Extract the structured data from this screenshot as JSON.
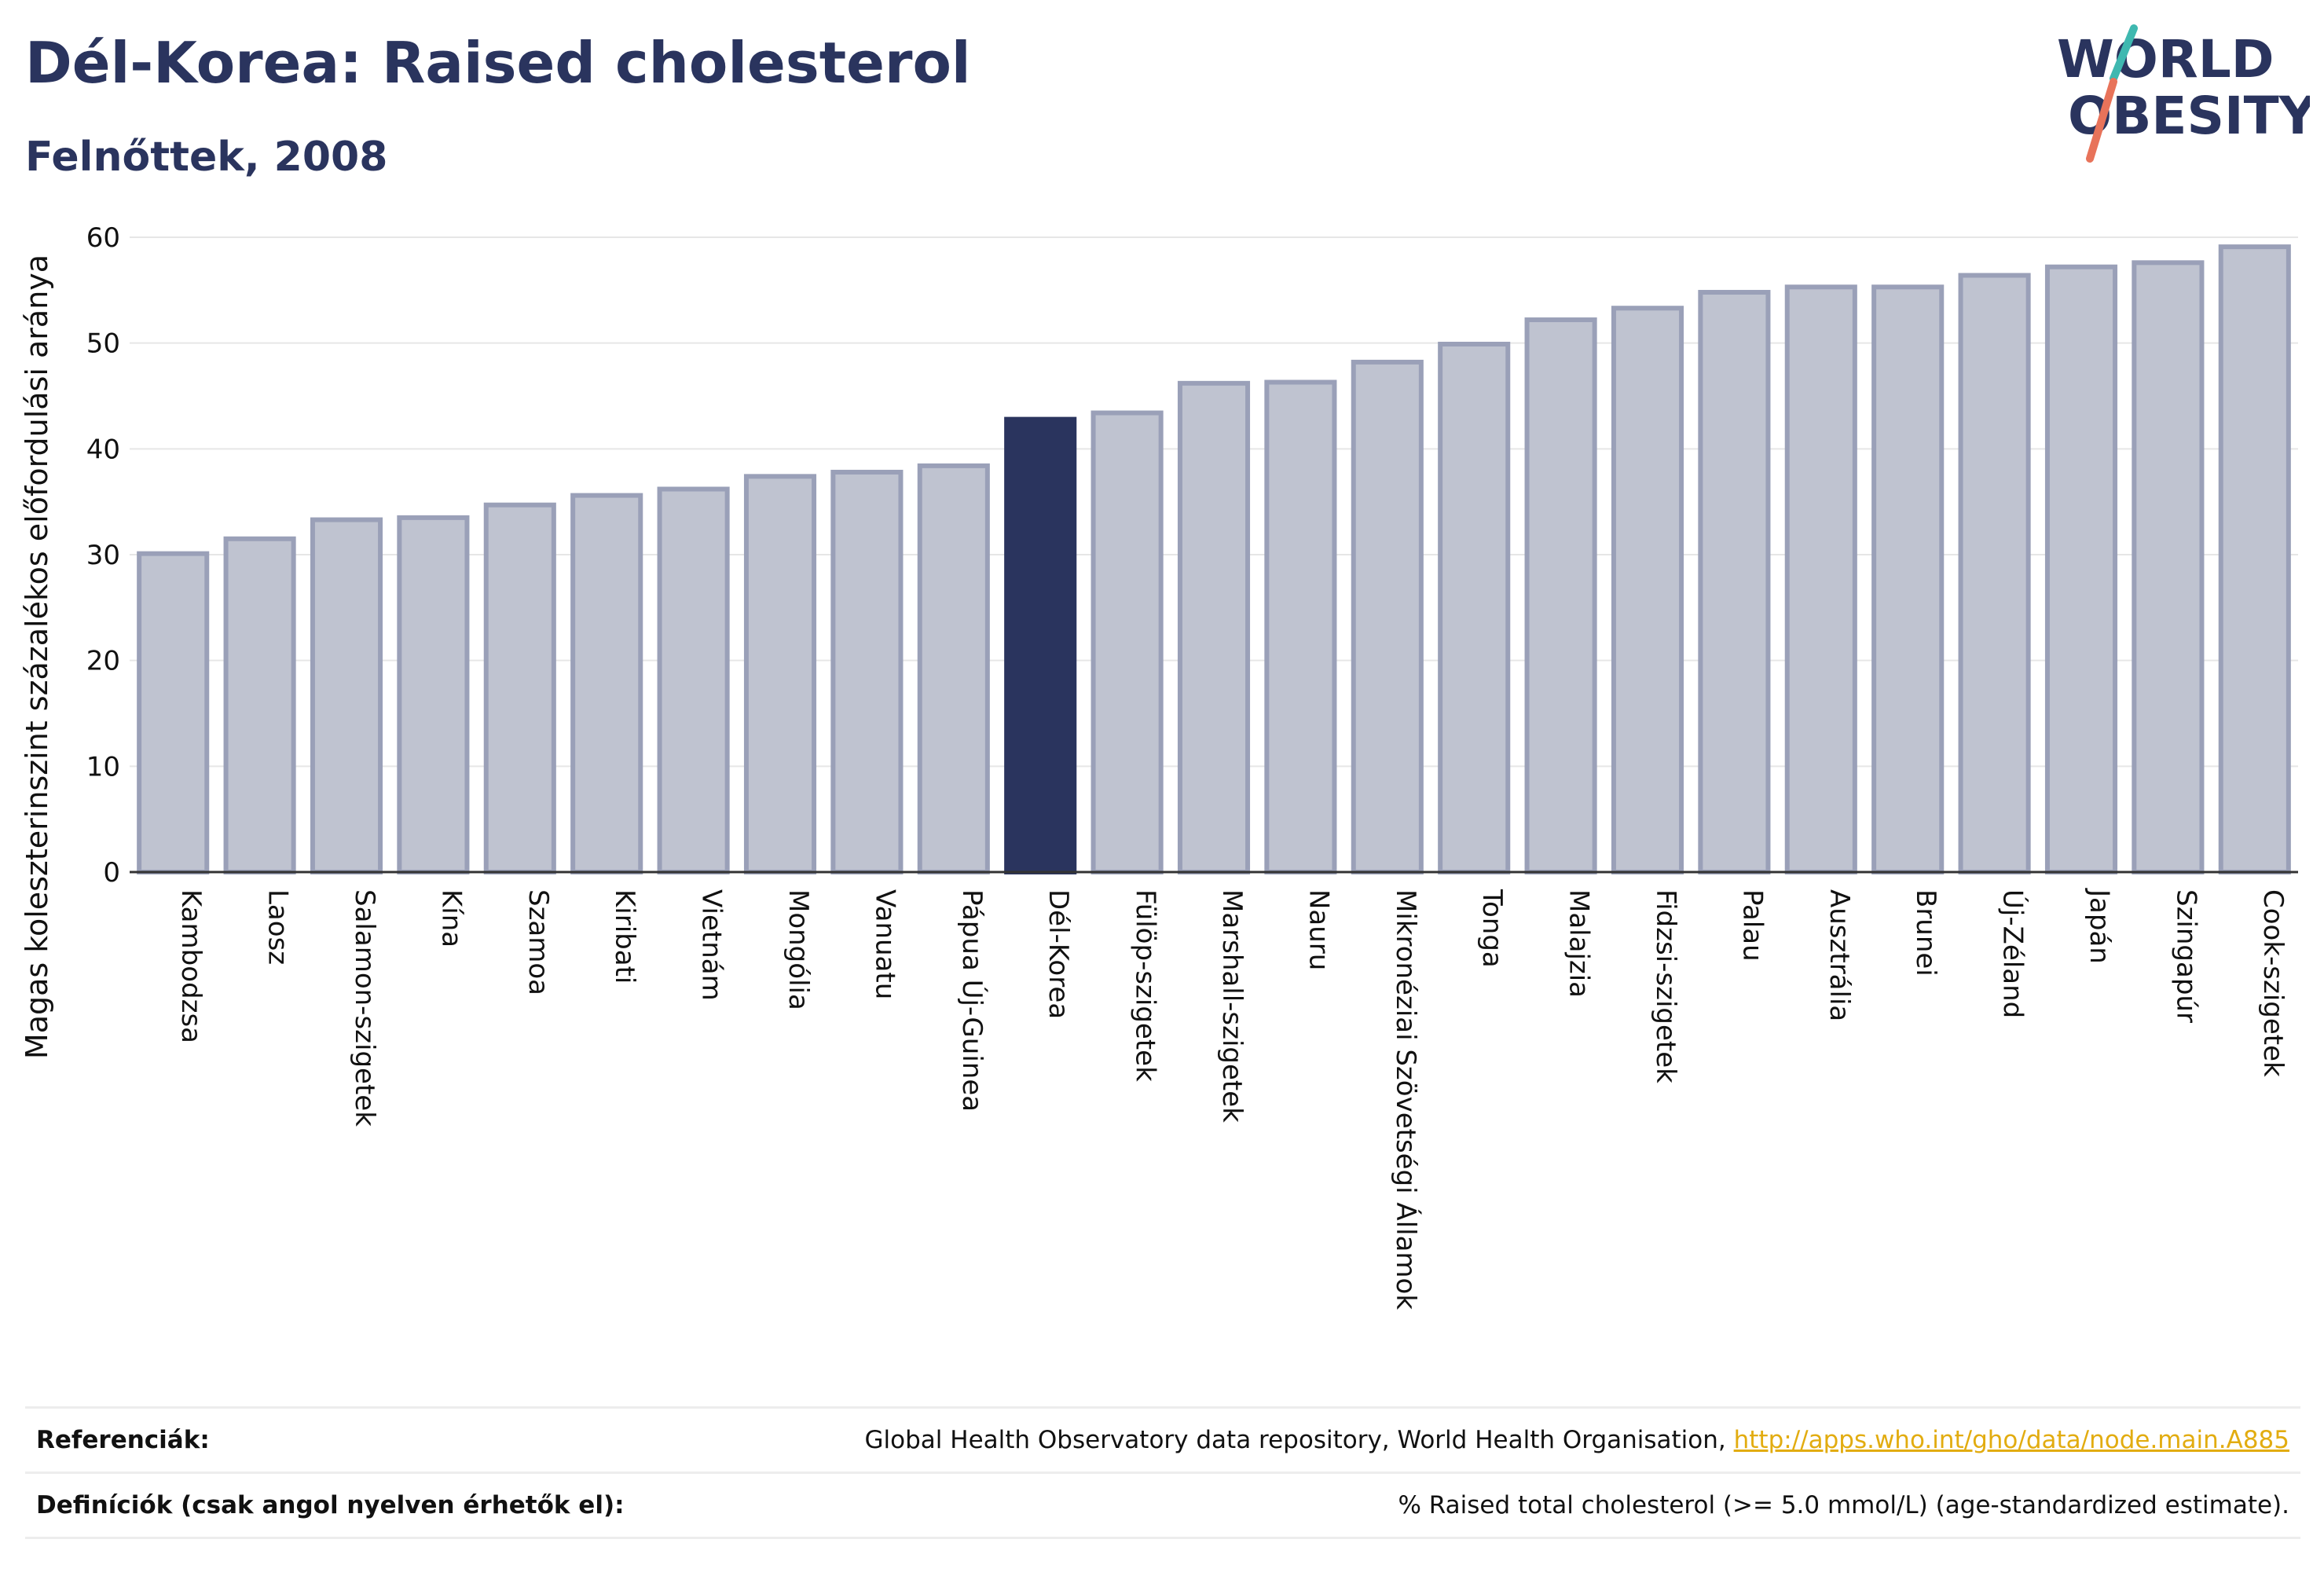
{
  "header": {
    "title": "Dél-Korea: Raised cholesterol",
    "subtitle": "Felnőttek, 2008"
  },
  "logo": {
    "line1": "WORLD",
    "line2": "OBESITY",
    "accent_colors": [
      "#3fb8b0",
      "#e8735a"
    ]
  },
  "chart_data": {
    "type": "bar",
    "ylabel": "Magas koleszterinszint százalékos előfordulási aránya",
    "xlabel": "",
    "ylim": [
      0,
      60
    ],
    "yticks": [
      0,
      10,
      20,
      30,
      40,
      50,
      60
    ],
    "grid": true,
    "categories": [
      "Kambodzsa",
      "Laosz",
      "Salamon-szigetek",
      "Kína",
      "Szamoa",
      "Kiribati",
      "Vietnám",
      "Mongólia",
      "Vanuatu",
      "Pápua Új-Guinea",
      "Dél-Korea",
      "Fülöp-szigetek",
      "Marshall-szigetek",
      "Nauru",
      "Mikronéziai Szövetségi Államok",
      "Tonga",
      "Malajzia",
      "Fidzsi-szigetek",
      "Palau",
      "Ausztrália",
      "Brunei",
      "Új-Zéland",
      "Japán",
      "Szingapúr",
      "Cook-szigetek"
    ],
    "values": [
      30.1,
      31.5,
      33.3,
      33.5,
      34.7,
      35.6,
      36.2,
      37.4,
      37.8,
      38.4,
      42.8,
      43.4,
      46.2,
      46.3,
      48.2,
      49.9,
      52.2,
      53.3,
      54.8,
      55.3,
      55.3,
      56.4,
      57.2,
      57.6,
      59.1
    ],
    "highlight": "Dél-Korea",
    "colors": {
      "bar": "#bfc3d0",
      "bar_edge": "#9aa0b8",
      "highlight": "#2a345e"
    }
  },
  "footer": {
    "references_label": "Referenciák:",
    "references_text": "Global Health Observatory data repository, World Health Organisation, ",
    "references_link": "http://apps.who.int/gho/data/node.main.A885",
    "definitions_label": "Definíciók (csak angol nyelven érhetők el):",
    "definitions_text": "% Raised total cholesterol (>= 5.0 mmol/L) (age-standardized estimate)."
  }
}
